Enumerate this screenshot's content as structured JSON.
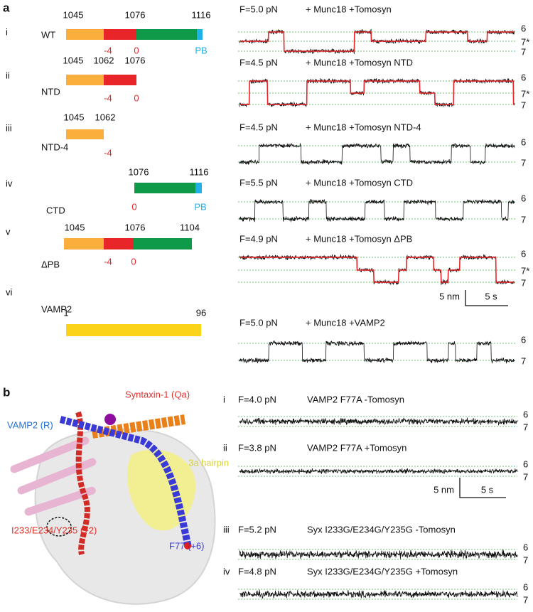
{
  "panel_a": {
    "label": "a",
    "constructs": [
      {
        "roman": "i",
        "name": "WT",
        "residues": [
          "1045",
          "1076",
          "1116"
        ],
        "zones": [
          "-4",
          "0",
          "PB"
        ]
      },
      {
        "roman": "ii",
        "name": "NTD",
        "residues": [
          "1045",
          "1062",
          "1076"
        ],
        "zones": [
          "-4",
          "0"
        ]
      },
      {
        "roman": "iii",
        "name": "NTD-4",
        "residues": [
          "1045",
          "1062"
        ],
        "zones": [
          "-4"
        ]
      },
      {
        "roman": "iv",
        "name": "CTD",
        "residues": [
          "1076",
          "1116"
        ],
        "zones": [
          "0",
          "PB"
        ]
      },
      {
        "roman": "v",
        "name": "ΔPB",
        "residues": [
          "1045",
          "1076",
          "1104"
        ],
        "zones": [
          "-4",
          "0"
        ]
      },
      {
        "roman": "vi",
        "name": "VAMP2",
        "residues": [
          "1",
          "96"
        ],
        "zones": []
      }
    ],
    "traces": [
      {
        "force": "F=5.0 pN",
        "condition": "+ Munc18 +Tomosyn",
        "states": [
          "6",
          "7*",
          "7"
        ]
      },
      {
        "force": "F=4.5 pN",
        "condition": "+ Munc18 +Tomosyn NTD",
        "states": [
          "6",
          "7*",
          "7"
        ]
      },
      {
        "force": "F=4.5 pN",
        "condition": "+ Munc18 +Tomosyn NTD-4",
        "states": [
          "6",
          "7"
        ]
      },
      {
        "force": "F=5.5 pN",
        "condition": "+ Munc18 +Tomosyn CTD",
        "states": [
          "6",
          "7"
        ]
      },
      {
        "force": "F=4.9 pN",
        "condition": "+ Munc18 +Tomosyn ΔPB",
        "states": [
          "6",
          "7*",
          "7"
        ]
      },
      {
        "force": "F=5.0 pN",
        "condition": "+ Munc18 +VAMP2",
        "states": [
          "6",
          "7"
        ]
      }
    ],
    "scale_bar": {
      "length": "5 nm",
      "time": "5 s"
    }
  },
  "panel_b": {
    "label": "b",
    "structure_labels": {
      "syntaxin": "Syntaxin-1 (Qa)",
      "vamp": "VAMP2 (R)",
      "hairpin": "3a hairpin",
      "mutation_syx": "I233/E234/Y235 (+2)",
      "mutation_vamp": "F77 (+6)"
    },
    "traces": [
      {
        "roman": "i",
        "force": "F=4.0 pN",
        "condition": "VAMP2 F77A  -Tomosyn",
        "states": [
          "6",
          "7"
        ]
      },
      {
        "roman": "ii",
        "force": "F=3.8 pN",
        "condition": "VAMP2 F77A  +Tomosyn",
        "states": [
          "6",
          "7"
        ]
      },
      {
        "roman": "iii",
        "force": "F=5.2 pN",
        "condition": "Syx I233G/E234G/Y235G  -Tomosyn",
        "states": [
          "6",
          "7"
        ]
      },
      {
        "roman": "iv",
        "force": "F=4.8 pN",
        "condition": "Syx I233G/E234G/Y235G  +Tomosyn",
        "states": [
          "6",
          "7"
        ]
      }
    ],
    "scale_bar": {
      "length": "5 nm",
      "time": "5 s"
    }
  }
}
